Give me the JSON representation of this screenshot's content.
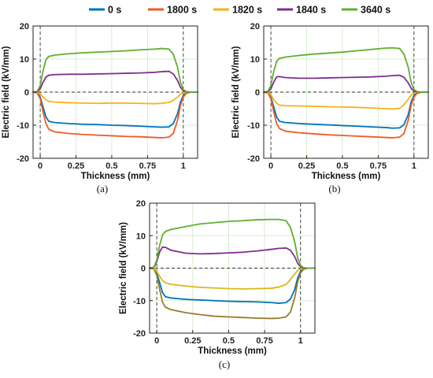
{
  "legend": [
    {
      "name": "0 s",
      "color": "#0072BD"
    },
    {
      "name": "1800 s",
      "color": "#EE5A24"
    },
    {
      "name": "1820 s",
      "color": "#F5B21A"
    },
    {
      "name": "1840 s",
      "color": "#7E2F8E"
    },
    {
      "name": "3640 s",
      "color": "#5FAF2E"
    }
  ],
  "chart_data": [
    {
      "type": "line",
      "panel_label": "(a)",
      "xlabel": "Thickness (mm)",
      "ylabel": "Electric field (kV/mm)",
      "xlim": [
        -0.05,
        1.1
      ],
      "ylim": [
        -20,
        20
      ],
      "xticks": [
        0,
        0.25,
        0.5,
        0.75,
        1
      ],
      "xtick_labels": [
        "0",
        "0.25",
        "0.5",
        "0.75",
        "1"
      ],
      "yticks": [
        -20,
        -10,
        0,
        10,
        20
      ],
      "ytick_labels": [
        "-20",
        "-10",
        "0",
        "10",
        "20"
      ],
      "grid": true,
      "x": [
        -0.05,
        -0.02,
        0.0,
        0.02,
        0.04,
        0.06,
        0.1,
        0.2,
        0.3,
        0.4,
        0.5,
        0.6,
        0.7,
        0.8,
        0.85,
        0.9,
        0.93,
        0.96,
        0.98,
        1.0,
        1.02,
        1.05,
        1.1
      ],
      "series": [
        {
          "name": "0 s",
          "color": "#0072BD",
          "values": [
            0,
            -0.2,
            -1.5,
            -4.5,
            -7.5,
            -8.8,
            -9.2,
            -9.5,
            -9.7,
            -9.8,
            -10.0,
            -10.1,
            -10.3,
            -10.5,
            -10.6,
            -10.5,
            -9.5,
            -6.5,
            -3.0,
            -1.0,
            -0.3,
            0,
            0
          ]
        },
        {
          "name": "1800 s",
          "color": "#EE5A24",
          "values": [
            0,
            -0.3,
            -2.0,
            -6.0,
            -9.5,
            -11.2,
            -12.0,
            -12.5,
            -12.8,
            -13.0,
            -13.2,
            -13.4,
            -13.5,
            -13.7,
            -13.8,
            -13.6,
            -12.5,
            -8.5,
            -4.0,
            -1.5,
            -0.4,
            0,
            0
          ]
        },
        {
          "name": "1820 s",
          "color": "#F5B21A",
          "values": [
            0,
            -0.1,
            -0.5,
            -1.5,
            -2.3,
            -2.8,
            -3.0,
            -3.2,
            -3.3,
            -3.4,
            -3.3,
            -3.3,
            -3.4,
            -3.5,
            -3.4,
            -3.1,
            -2.5,
            -1.5,
            -0.6,
            -0.2,
            0,
            0,
            0
          ]
        },
        {
          "name": "1840 s",
          "color": "#7E2F8E",
          "values": [
            0,
            0.1,
            1.0,
            3.0,
            4.6,
            5.1,
            5.3,
            5.4,
            5.4,
            5.5,
            5.6,
            5.7,
            5.8,
            6.0,
            6.2,
            6.3,
            5.5,
            3.5,
            1.5,
            0.4,
            0.1,
            0,
            0
          ]
        },
        {
          "name": "3640 s",
          "color": "#5FAF2E",
          "values": [
            0,
            0.3,
            2.0,
            6.5,
            9.8,
            10.8,
            11.2,
            11.6,
            11.9,
            12.1,
            12.3,
            12.5,
            12.8,
            13.0,
            13.2,
            13.0,
            11.5,
            7.5,
            3.0,
            0.8,
            0.2,
            0,
            0
          ]
        }
      ]
    },
    {
      "type": "line",
      "panel_label": "(b)",
      "xlabel": "Thickness (mm)",
      "ylabel": "Electric field (kV/mm)",
      "xlim": [
        -0.05,
        1.1
      ],
      "ylim": [
        -20,
        20
      ],
      "xticks": [
        0,
        0.25,
        0.5,
        0.75,
        1
      ],
      "xtick_labels": [
        "0",
        "0.25",
        "0.5",
        "0.75",
        "1"
      ],
      "yticks": [
        -20,
        -10,
        0,
        10,
        20
      ],
      "ytick_labels": [
        "-20",
        "-10",
        "0",
        "10",
        "20"
      ],
      "grid": true,
      "x": [
        -0.05,
        -0.02,
        0.0,
        0.02,
        0.04,
        0.06,
        0.1,
        0.2,
        0.3,
        0.4,
        0.5,
        0.6,
        0.7,
        0.8,
        0.85,
        0.9,
        0.93,
        0.96,
        0.98,
        1.0,
        1.02,
        1.05,
        1.1
      ],
      "series": [
        {
          "name": "0 s",
          "color": "#0072BD",
          "values": [
            0,
            -0.2,
            -1.5,
            -4.5,
            -7.5,
            -8.8,
            -9.2,
            -9.5,
            -9.7,
            -9.9,
            -10.1,
            -10.3,
            -10.5,
            -10.7,
            -10.9,
            -10.8,
            -9.8,
            -6.8,
            -3.0,
            -1.0,
            -0.3,
            0,
            0
          ]
        },
        {
          "name": "1800 s",
          "color": "#EE5A24",
          "values": [
            0,
            -0.3,
            -2.0,
            -6.0,
            -9.5,
            -11.0,
            -11.8,
            -12.3,
            -12.6,
            -12.9,
            -13.1,
            -13.3,
            -13.5,
            -13.7,
            -13.8,
            -13.6,
            -12.5,
            -8.5,
            -4.0,
            -1.5,
            -0.4,
            0,
            0
          ]
        },
        {
          "name": "1820 s",
          "color": "#F5B21A",
          "values": [
            0,
            -0.1,
            -0.8,
            -2.3,
            -3.4,
            -3.9,
            -4.1,
            -4.2,
            -4.3,
            -4.4,
            -4.5,
            -4.6,
            -4.8,
            -5.0,
            -5.1,
            -4.9,
            -3.8,
            -2.2,
            -0.9,
            -0.3,
            0,
            0,
            0
          ]
        },
        {
          "name": "1840 s",
          "color": "#7E2F8E",
          "values": [
            0,
            0.1,
            1.0,
            3.0,
            4.6,
            4.7,
            4.4,
            4.2,
            4.2,
            4.3,
            4.4,
            4.5,
            4.6,
            4.8,
            5.0,
            5.1,
            4.5,
            2.8,
            1.2,
            0.3,
            0.1,
            0,
            0
          ]
        },
        {
          "name": "3640 s",
          "color": "#5FAF2E",
          "values": [
            0,
            0.3,
            2.0,
            6.3,
            9.3,
            10.2,
            10.6,
            11.1,
            11.5,
            11.8,
            12.1,
            12.5,
            12.9,
            13.3,
            13.4,
            13.2,
            11.5,
            7.5,
            3.0,
            0.8,
            0.2,
            0,
            0
          ]
        }
      ]
    },
    {
      "type": "line",
      "panel_label": "(c)",
      "xlabel": "Thickness (mm)",
      "ylabel": "Electric field (kV/mm)",
      "xlim": [
        -0.05,
        1.1
      ],
      "ylim": [
        -20,
        20
      ],
      "xticks": [
        0,
        0.25,
        0.5,
        0.75,
        1
      ],
      "xtick_labels": [
        "0",
        "0.25",
        "0.5",
        "0.75",
        "1"
      ],
      "yticks": [
        -20,
        -10,
        0,
        10,
        20
      ],
      "ytick_labels": [
        "-20",
        "-10",
        "0",
        "10",
        "20"
      ],
      "grid": true,
      "x": [
        -0.05,
        -0.02,
        0.0,
        0.02,
        0.04,
        0.06,
        0.1,
        0.2,
        0.3,
        0.4,
        0.5,
        0.6,
        0.7,
        0.8,
        0.85,
        0.9,
        0.93,
        0.96,
        0.98,
        1.0,
        1.02,
        1.05,
        1.1
      ],
      "series": [
        {
          "name": "0 s",
          "color": "#0072BD",
          "values": [
            0,
            -0.2,
            -1.5,
            -4.5,
            -7.5,
            -8.8,
            -9.2,
            -9.6,
            -9.8,
            -10.0,
            -10.2,
            -10.3,
            -10.4,
            -10.6,
            -10.8,
            -10.6,
            -9.5,
            -6.5,
            -3.0,
            -1.0,
            -0.3,
            0,
            0
          ]
        },
        {
          "name": "1800 s",
          "color": "#9A7B2C",
          "values": [
            0,
            -0.3,
            -2.2,
            -6.5,
            -10.5,
            -12.0,
            -12.8,
            -13.7,
            -14.3,
            -14.8,
            -15.0,
            -15.2,
            -15.4,
            -15.5,
            -15.4,
            -15.0,
            -13.5,
            -9.0,
            -4.2,
            -1.5,
            -0.4,
            0,
            0
          ]
        },
        {
          "name": "1820 s",
          "color": "#D6B91C",
          "values": [
            0,
            -0.1,
            -1.0,
            -2.5,
            -3.8,
            -4.5,
            -5.0,
            -5.5,
            -5.9,
            -6.1,
            -6.3,
            -6.4,
            -6.3,
            -6.2,
            -5.8,
            -5.0,
            -3.5,
            -1.8,
            -0.7,
            -0.2,
            0,
            0,
            0
          ]
        },
        {
          "name": "1840 s",
          "color": "#7E2F8E",
          "values": [
            0,
            0.2,
            2.0,
            5.0,
            6.5,
            6.4,
            5.5,
            4.6,
            4.4,
            4.5,
            4.7,
            4.9,
            5.3,
            5.8,
            6.1,
            6.2,
            5.5,
            3.5,
            1.5,
            0.4,
            0.1,
            0,
            0
          ]
        },
        {
          "name": "3640 s",
          "color": "#5FAF2E",
          "values": [
            0,
            0.3,
            2.5,
            7.0,
            10.2,
            11.3,
            11.9,
            12.8,
            13.6,
            14.0,
            14.4,
            14.6,
            14.9,
            15.0,
            15.0,
            14.6,
            12.5,
            8.0,
            3.2,
            0.8,
            0.2,
            0,
            0
          ]
        }
      ]
    }
  ]
}
